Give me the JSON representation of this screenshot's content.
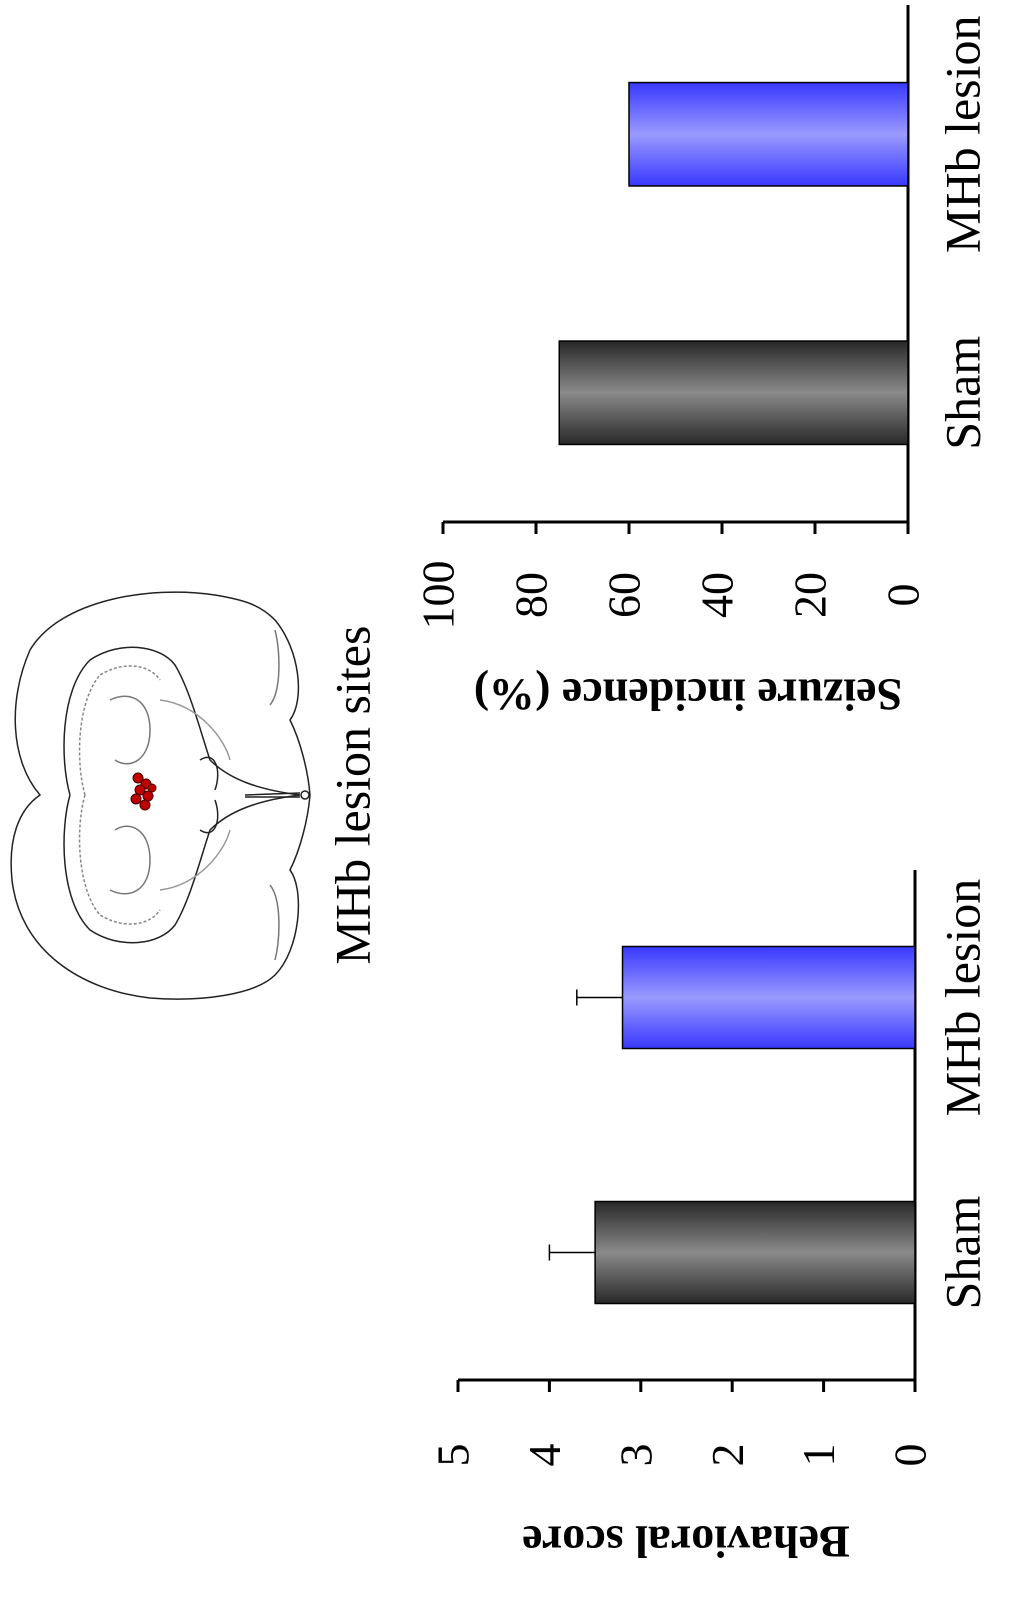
{
  "chart_data": [
    {
      "type": "bar",
      "y_label": "Behavioral score",
      "categories": [
        "Sham",
        "MHb lesion"
      ],
      "values": [
        3.5,
        3.2
      ],
      "errors": [
        0.5,
        0.5
      ],
      "colors": [
        "#8a8a8a",
        "#9a9aff"
      ],
      "ylim": [
        0,
        5
      ],
      "yticks": [
        0,
        1,
        2,
        3,
        4,
        5
      ]
    },
    {
      "type": "bar",
      "y_label": "Seizure incidence (%)",
      "categories": [
        "Sham",
        "MHb lesion"
      ],
      "values": [
        75,
        60
      ],
      "colors": [
        "#8a8a8a",
        "#9a9aff"
      ],
      "ylim": [
        0,
        100
      ],
      "yticks": [
        0,
        20,
        40,
        60,
        80,
        100
      ]
    }
  ],
  "diagram": {
    "label": "MHb lesion sites"
  }
}
